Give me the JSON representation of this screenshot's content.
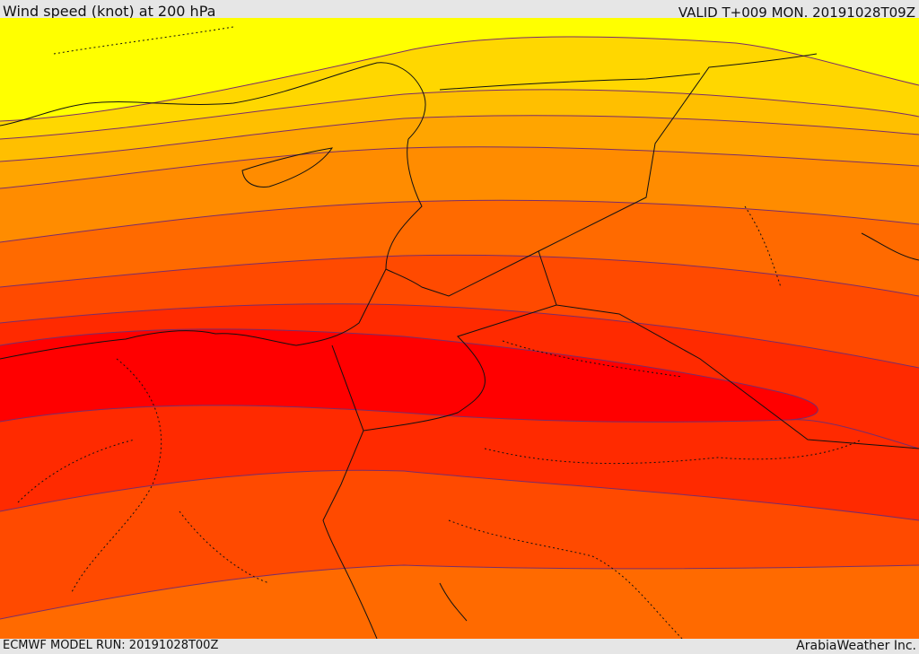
{
  "header": {
    "title": "Wind speed (knot) at 200 hPa",
    "valid": "VALID T+009 MON. 20191028T09Z"
  },
  "footer": {
    "model_run": "ECMWF MODEL RUN: 20191028T00Z",
    "credit": "ArabiaWeather Inc."
  },
  "colors": {
    "band_1": "#ffff00",
    "band_2": "#ffd700",
    "band_3": "#ffbf00",
    "band_4": "#ffa500",
    "band_5": "#ff8c00",
    "band_6": "#ff6a00",
    "band_7": "#ff4a00",
    "band_8": "#ff2a00",
    "band_9": "#ff0000",
    "contour": "#7a2c6a",
    "border": "#111111"
  }
}
